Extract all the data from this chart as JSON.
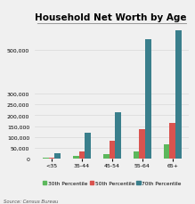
{
  "title": "Household Net Worth by Age",
  "categories": [
    "<35",
    "35-44",
    "45-54",
    "55-64",
    "65+"
  ],
  "series": {
    "30th Percentile": [
      6000,
      14000,
      22000,
      35000,
      65000
    ],
    "50th Percentile": [
      7000,
      35000,
      84000,
      135000,
      165000
    ],
    "70th Percentile": [
      28000,
      120000,
      215000,
      550000,
      590000
    ]
  },
  "colors": {
    "30th Percentile": "#5cb85c",
    "50th Percentile": "#d9534f",
    "70th Percentile": "#3a7f8c"
  },
  "ylim": [
    0,
    620000
  ],
  "yticks": [
    0,
    50000,
    100000,
    150000,
    200000,
    250000,
    300000,
    500000
  ],
  "source_text": "Source: Census Bureau",
  "background_color": "#f0f0f0",
  "grid_color": "#d8d8d8",
  "title_fontsize": 7.5,
  "tick_fontsize": 4.5,
  "legend_fontsize": 4.2
}
